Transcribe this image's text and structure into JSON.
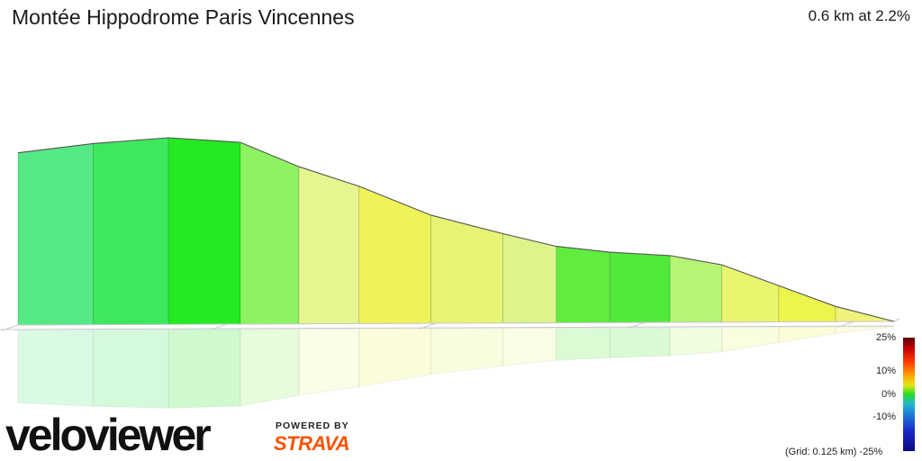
{
  "header": {
    "title": "Montée Hippodrome Paris Vincennes",
    "stats": "0.6 km at 2.2%"
  },
  "branding": {
    "logo_text": "veloviewer",
    "powered_by": "POWERED BY",
    "strava": "STRAVA"
  },
  "gradient_scale": {
    "labels": [
      "25%",
      "10%",
      "0%",
      "-10%",
      "-25%"
    ],
    "grid_note": "(Grid: 0.125 km)"
  },
  "chart_data": {
    "type": "area",
    "title": "Montée Hippodrome Paris Vincennes",
    "xlabel": "",
    "ylabel": "",
    "x_unit": "km",
    "grid_km": 0.125,
    "segments": [
      {
        "start": 0.0,
        "end": 0.045,
        "rel_height_start": 0.0,
        "rel_height_end": 0.8,
        "color": "#55e985"
      },
      {
        "start": 0.045,
        "end": 0.09,
        "rel_height_start": 0.8,
        "rel_height_end": 1.3,
        "color": "#3de85d"
      },
      {
        "start": 0.09,
        "end": 0.133,
        "rel_height_start": 1.3,
        "rel_height_end": 0.9,
        "color": "#23ea23"
      },
      {
        "start": 0.133,
        "end": 0.168,
        "rel_height_start": 0.9,
        "rel_height_end": -1.2,
        "color": "#8df360"
      },
      {
        "start": 0.168,
        "end": 0.204,
        "rel_height_start": -1.2,
        "rel_height_end": -2.9,
        "color": "#e7f590"
      },
      {
        "start": 0.204,
        "end": 0.247,
        "rel_height_start": -2.9,
        "rel_height_end": -5.4,
        "color": "#eef358"
      },
      {
        "start": 0.247,
        "end": 0.29,
        "rel_height_start": -5.4,
        "rel_height_end": -7.0,
        "color": "#e6f374"
      },
      {
        "start": 0.29,
        "end": 0.322,
        "rel_height_start": -7.0,
        "rel_height_end": -8.1,
        "color": "#ddf48d"
      },
      {
        "start": 0.322,
        "end": 0.354,
        "rel_height_start": -8.1,
        "rel_height_end": -8.6,
        "color": "#61ec40"
      },
      {
        "start": 0.354,
        "end": 0.39,
        "rel_height_start": -8.6,
        "rel_height_end": -8.9,
        "color": "#52e93d"
      },
      {
        "start": 0.39,
        "end": 0.421,
        "rel_height_start": -8.9,
        "rel_height_end": -9.7,
        "color": "#b5f474"
      },
      {
        "start": 0.421,
        "end": 0.455,
        "rel_height_start": -9.7,
        "rel_height_end": -11.5,
        "color": "#e9f56e"
      },
      {
        "start": 0.455,
        "end": 0.489,
        "rel_height_start": -11.5,
        "rel_height_end": -13.3,
        "color": "#ecf44e"
      },
      {
        "start": 0.489,
        "end": 0.524,
        "rel_height_start": -13.3,
        "rel_height_end": -14.6,
        "color": "#f0f37a"
      }
    ]
  }
}
